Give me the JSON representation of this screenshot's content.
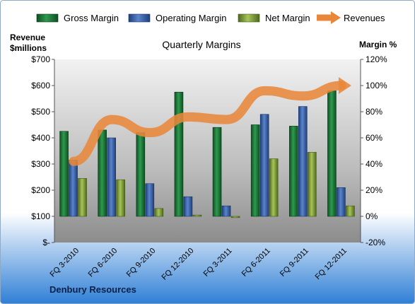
{
  "chart_data": {
    "type": "bar",
    "title": "Quarterly Margins",
    "company": "Denbury Resources",
    "categories": [
      "FQ 3-2010",
      "FQ 6-2010",
      "FQ 9-2010",
      "FQ 12-2010",
      "FQ 3-2011",
      "FQ 6-2011",
      "FQ 9-2011",
      "FQ 12-2011"
    ],
    "left_axis": {
      "label_line1": "Revenue",
      "label_line2": "$millions",
      "ylim": [
        0,
        700
      ],
      "ticks": [
        0,
        100,
        200,
        300,
        400,
        500,
        600,
        700
      ],
      "tick_labels": [
        "$-",
        "$100",
        "$200",
        "$300",
        "$400",
        "$500",
        "$600",
        "$700"
      ]
    },
    "right_axis": {
      "label": "Margin %",
      "ylim": [
        -20,
        120
      ],
      "ticks": [
        -20,
        0,
        20,
        40,
        60,
        80,
        100,
        120
      ],
      "tick_labels": [
        "-20%",
        "0%",
        "20%",
        "40%",
        "60%",
        "80%",
        "100%",
        "120%"
      ]
    },
    "series": [
      {
        "name": "Gross Margin",
        "kind": "bar",
        "axis": "right",
        "color": "#1e7a3c",
        "values": [
          65,
          66,
          64,
          95,
          68,
          70,
          69,
          96
        ]
      },
      {
        "name": "Operating Margin",
        "kind": "bar",
        "axis": "right",
        "color": "#3f66ad",
        "values": [
          43,
          60,
          25,
          15,
          8,
          78,
          84,
          22
        ]
      },
      {
        "name": "Net Margin",
        "kind": "bar",
        "axis": "right",
        "color": "#7fa03a",
        "values": [
          29,
          28,
          6,
          1,
          -1,
          44,
          49,
          8
        ]
      },
      {
        "name": "Revenues",
        "kind": "line",
        "axis": "left",
        "color": "#e8873a",
        "values": [
          310,
          470,
          420,
          480,
          470,
          580,
          560,
          600
        ]
      }
    ],
    "legend_position": "top",
    "grid": false
  }
}
